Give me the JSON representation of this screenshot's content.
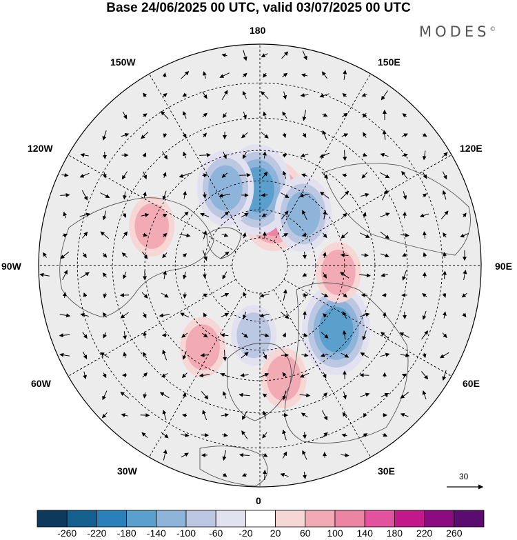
{
  "title": "Base 24/06/2025 00 UTC, valid 03/07/2025 00 UTC",
  "brand": "MODES",
  "brand_mark": "©",
  "longitude_labels": {
    "lon_180": "180",
    "lon_150E": "150E",
    "lon_120E": "120E",
    "lon_90E": "90E",
    "lon_60E": "60E",
    "lon_30E": "30E",
    "lon_0": "0",
    "lon_30W": "30W",
    "lon_60W": "60W",
    "lon_90W": "90W",
    "lon_120W": "120W",
    "lon_150W": "150W"
  },
  "reference_vector": "30",
  "colorbar": {
    "ticks": [
      "-260",
      "-220",
      "-180",
      "-140",
      "-100",
      "-60",
      "-20",
      "20",
      "60",
      "100",
      "140",
      "180",
      "220",
      "260"
    ],
    "colors": [
      "#0d3a5c",
      "#14608f",
      "#2a80b8",
      "#5b9fcc",
      "#8fb4da",
      "#bcc7e2",
      "#e2e1ef",
      "#ffffff",
      "#f7d6d6",
      "#f2abb4",
      "#ec85a4",
      "#e2529f",
      "#c2188a",
      "#8d0b80",
      "#5a0d6e"
    ]
  },
  "anomaly_centers": [
    {
      "name": "pink-center-chukchi",
      "value": 150,
      "lon": 167,
      "lat": 68
    },
    {
      "name": "blue-center-bering",
      "value": -140,
      "lon": -178,
      "lat": 63
    },
    {
      "name": "blue-center-alaska",
      "value": -100,
      "lon": -156,
      "lat": 60
    },
    {
      "name": "blue-center-east-siberia",
      "value": -130,
      "lon": 140,
      "lat": 66
    },
    {
      "name": "blue-center-russia",
      "value": -140,
      "lon": 50,
      "lat": 55
    },
    {
      "name": "blue-center-scandinavia",
      "value": -90,
      "lon": -5,
      "lat": 65
    },
    {
      "name": "pink-center-canada",
      "value": 90,
      "lon": -110,
      "lat": 50
    },
    {
      "name": "pink-center-siberia",
      "value": 90,
      "lon": 85,
      "lat": 62
    },
    {
      "name": "pink-center-europe",
      "value": 70,
      "lon": 12,
      "lat": 50
    },
    {
      "name": "pink-center-atlantic",
      "value": 60,
      "lon": -35,
      "lat": 55
    }
  ]
}
